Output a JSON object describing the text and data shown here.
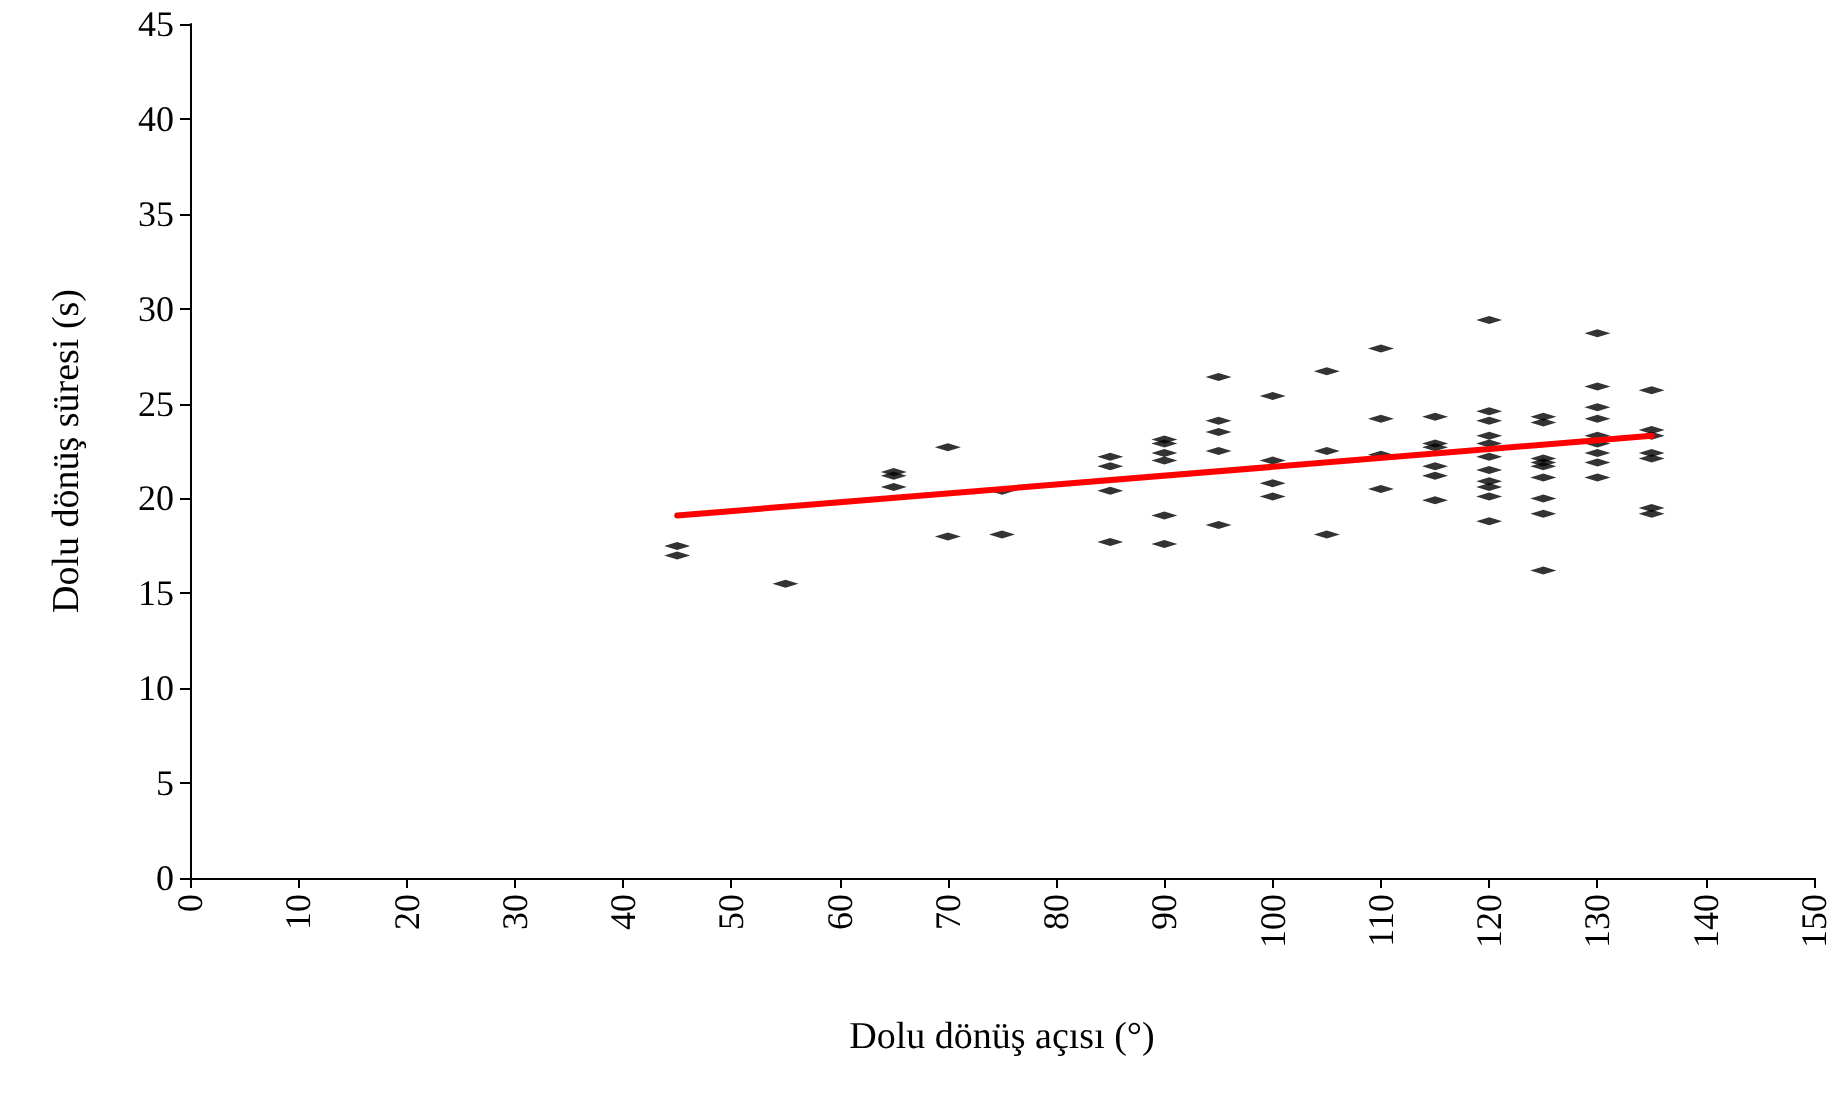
{
  "chart_data": {
    "type": "scatter",
    "xlabel": "Dolu dönüş açısı (°)",
    "ylabel": "Dolu dönüş süresi (s)",
    "xlim": [
      0,
      150
    ],
    "xticks": [
      0,
      10,
      20,
      30,
      40,
      50,
      60,
      70,
      80,
      90,
      100,
      110,
      120,
      130,
      140,
      150
    ],
    "ylim": [
      0,
      45
    ],
    "yticks": [
      0,
      5,
      10,
      15,
      20,
      25,
      30,
      35,
      40,
      45
    ],
    "grid": false,
    "series": [
      {
        "color": "#000000",
        "x": [
          45,
          45,
          55,
          65,
          65,
          65,
          70,
          70,
          75,
          75,
          85,
          85,
          85,
          85,
          90,
          90,
          90,
          90,
          90,
          90,
          95,
          95,
          95,
          95,
          95,
          100,
          100,
          100,
          100,
          105,
          105,
          105,
          110,
          110,
          110,
          110,
          115,
          115,
          115,
          115,
          115,
          115,
          120,
          120,
          120,
          120,
          120,
          120,
          120,
          120,
          120,
          120,
          120,
          125,
          125,
          125,
          125,
          125,
          125,
          125,
          125,
          125,
          130,
          130,
          130,
          130,
          130,
          130,
          130,
          130,
          130,
          135,
          135,
          135,
          135,
          135,
          135,
          135
        ],
        "values": [
          17.5,
          17.0,
          15.5,
          21.4,
          21.2,
          20.6,
          22.7,
          18.0,
          18.1,
          20.4,
          22.2,
          21.7,
          20.4,
          17.7,
          23.1,
          22.9,
          22.4,
          22.0,
          19.1,
          17.6,
          26.4,
          24.1,
          23.5,
          22.5,
          18.6,
          25.4,
          22.0,
          20.8,
          20.1,
          26.7,
          22.5,
          18.1,
          27.9,
          24.2,
          22.3,
          20.5,
          24.3,
          22.9,
          22.7,
          21.7,
          21.2,
          19.9,
          29.4,
          24.6,
          24.1,
          23.3,
          22.9,
          22.2,
          21.5,
          20.9,
          20.6,
          20.1,
          18.8,
          24.3,
          24.0,
          22.1,
          21.9,
          21.7,
          21.1,
          20.0,
          19.2,
          16.2,
          28.7,
          25.9,
          24.8,
          24.2,
          23.3,
          22.9,
          22.4,
          21.9,
          21.1,
          25.7,
          23.6,
          23.3,
          22.4,
          22.1,
          19.5,
          19.2
        ]
      },
      {
        "type": "line",
        "color": "#ff0000",
        "x": [
          45,
          135
        ],
        "values": [
          19.1,
          23.3
        ],
        "line_style": "solid"
      }
    ]
  }
}
